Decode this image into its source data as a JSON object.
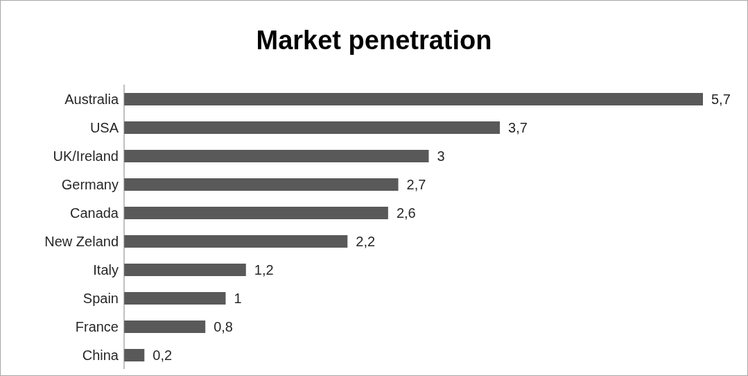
{
  "chart_data": {
    "type": "bar",
    "title": "Market penetration",
    "orientation": "horizontal",
    "categories": [
      "Australia",
      "USA",
      "UK/Ireland",
      "Germany",
      "Canada",
      "New Zeland",
      "Italy",
      "Spain",
      "France",
      "China"
    ],
    "values": [
      5.7,
      3.7,
      3,
      2.7,
      2.6,
      2.2,
      1.2,
      1,
      0.8,
      0.2
    ],
    "value_labels": [
      "5,7",
      "3,7",
      "3",
      "2,7",
      "2,6",
      "2,2",
      "1,2",
      "1",
      "0,8",
      "0,2"
    ],
    "color": "#595959"
  }
}
